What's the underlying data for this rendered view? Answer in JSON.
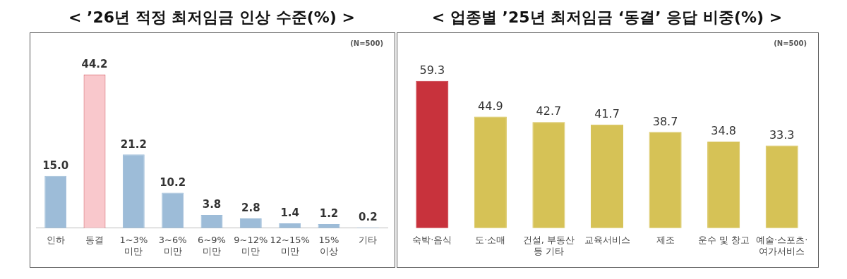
{
  "chart_data": [
    {
      "type": "bar",
      "title": "< ’26년 적정 최저임금 인상 수준(%) >",
      "categories": [
        "인하",
        "동결",
        "1~3%\n미만",
        "3~6%\n미만",
        "6~9%\n미만",
        "9~12%\n미만",
        "12~15%\n미만",
        "15%\n이상",
        "기타"
      ],
      "values": [
        15.0,
        44.2,
        21.2,
        10.2,
        3.8,
        2.8,
        1.4,
        1.2,
        0.2
      ],
      "value_labels": [
        "15.0",
        "44.2",
        "21.2",
        "10.2",
        "3.8",
        "2.8",
        "1.4",
        "1.2",
        "0.2"
      ],
      "colors": [
        "#9dbcd8",
        "#f9c8cc",
        "#9dbcd8",
        "#9dbcd8",
        "#9dbcd8",
        "#9dbcd8",
        "#9dbcd8",
        "#9dbcd8",
        "#9dbcd8"
      ],
      "annotations": [
        "(N=500)"
      ],
      "tick_labels": "x",
      "grid": false,
      "legend": false
    },
    {
      "type": "bar",
      "title": "< 업종별 ’25년 최저임금 ‘동결’ 응답 비중(%) >",
      "categories": [
        "숙박·음식",
        "도·소매",
        "건설, 부동산\n등 기타",
        "교육서비스",
        "제조",
        "운수 및 창고",
        "예술·스포츠·\n여가서비스"
      ],
      "values": [
        59.3,
        44.9,
        42.7,
        41.7,
        38.7,
        34.8,
        33.3
      ],
      "value_labels": [
        "59.3",
        "44.9",
        "42.7",
        "41.7",
        "38.7",
        "34.8",
        "33.3"
      ],
      "colors": [
        "#c8323c",
        "#d6c256",
        "#d6c256",
        "#d6c256",
        "#d6c256",
        "#d6c256",
        "#d6c256"
      ],
      "annotations": [
        "(N=500)"
      ],
      "tick_labels": "x",
      "grid": false,
      "legend": false
    }
  ]
}
